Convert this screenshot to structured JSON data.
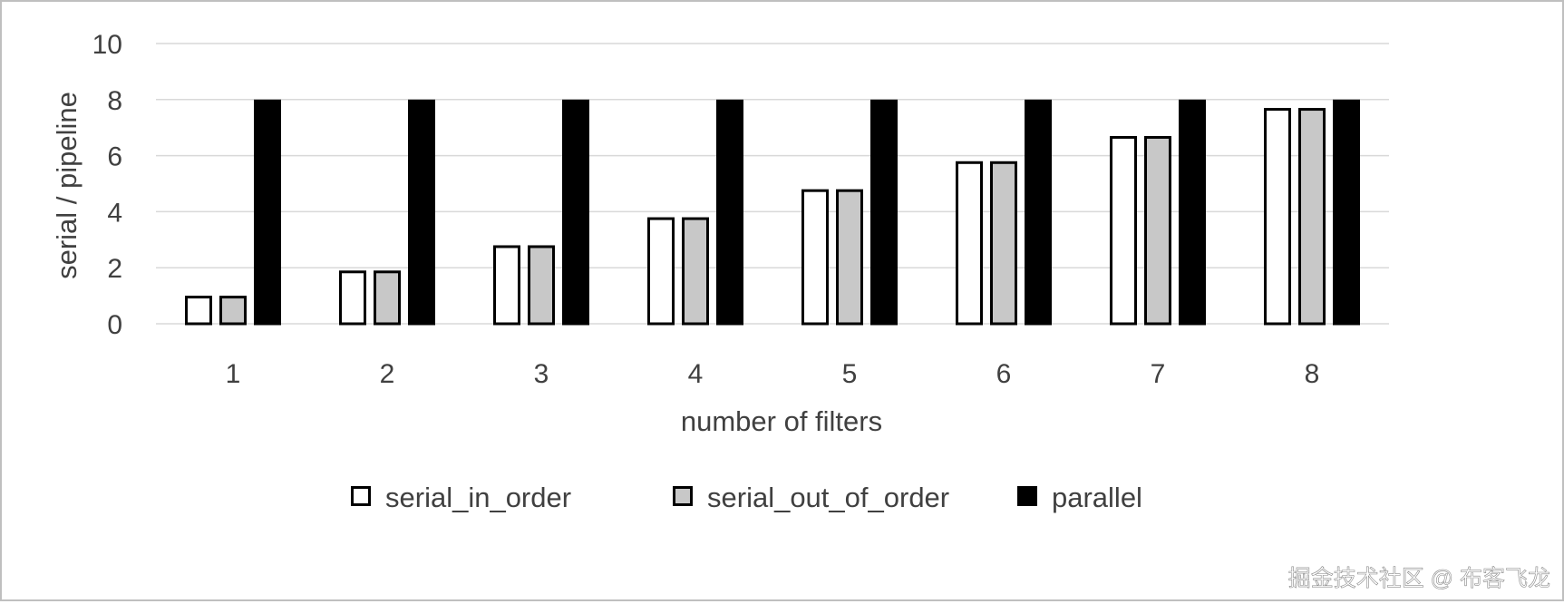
{
  "chart_data": {
    "type": "bar",
    "title": "",
    "xlabel": "number of filters",
    "ylabel": "serial / pipeline",
    "categories": [
      "1",
      "2",
      "3",
      "4",
      "5",
      "6",
      "7",
      "8"
    ],
    "ylim": [
      0,
      10
    ],
    "yticks": [
      "0",
      "2",
      "4",
      "6",
      "8",
      "10"
    ],
    "grid": true,
    "legend_position": "bottom",
    "series": [
      {
        "name": "serial_in_order",
        "values": [
          1.0,
          1.9,
          2.8,
          3.8,
          4.8,
          5.8,
          6.7,
          7.7
        ],
        "fill": "#ffffff",
        "stroke": "#000000"
      },
      {
        "name": "serial_out_of_order",
        "values": [
          1.0,
          1.9,
          2.8,
          3.8,
          4.8,
          5.8,
          6.7,
          7.7
        ],
        "fill": "#c8c8c8",
        "stroke": "#000000"
      },
      {
        "name": "parallel",
        "values": [
          8.0,
          8.0,
          8.0,
          8.0,
          8.0,
          8.0,
          8.0,
          8.0
        ],
        "fill": "#000000",
        "stroke": "#000000"
      }
    ]
  },
  "watermark": {
    "text": "掘金技术社区 @ 布客飞龙"
  },
  "colors": {
    "gridline": "#d9d9d9",
    "axis_text": "#404040",
    "frame_border": "#bfbfbf"
  }
}
